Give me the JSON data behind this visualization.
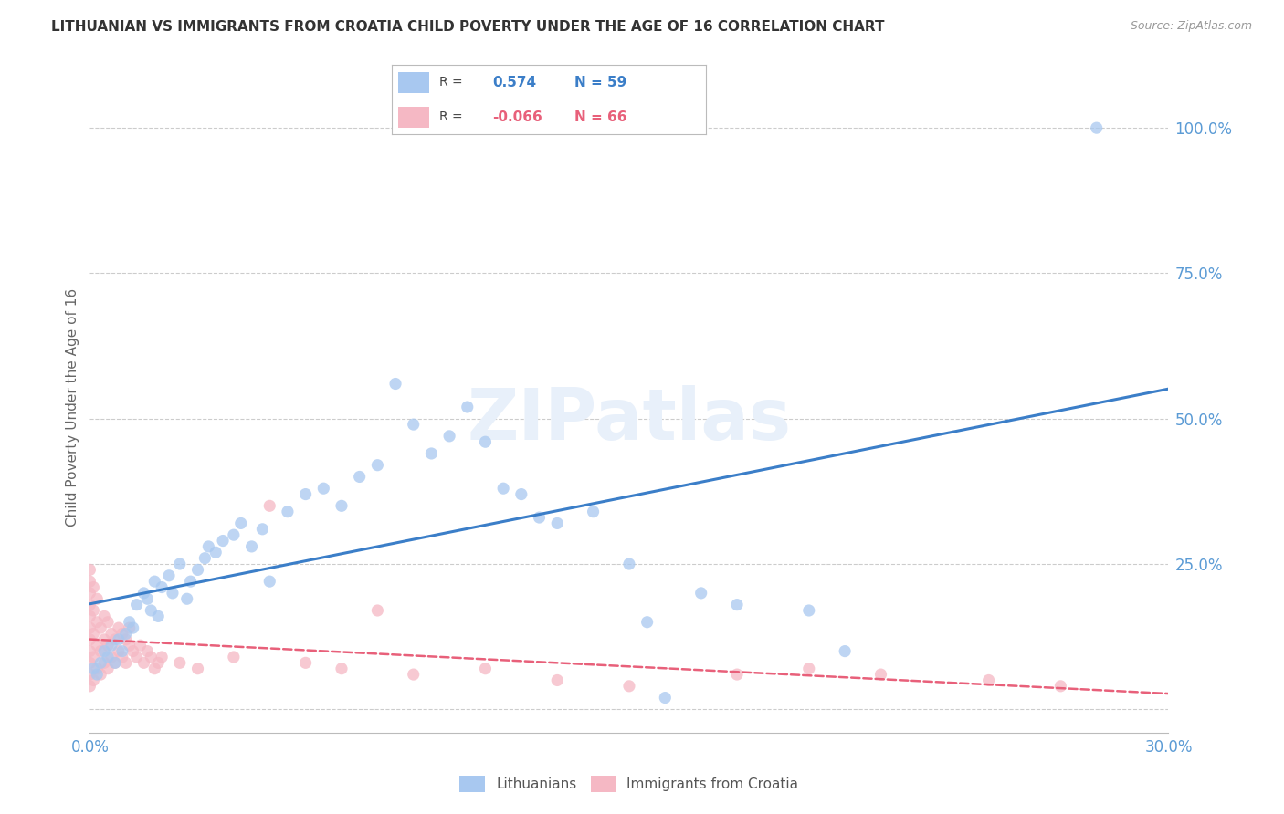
{
  "title": "LITHUANIAN VS IMMIGRANTS FROM CROATIA CHILD POVERTY UNDER THE AGE OF 16 CORRELATION CHART",
  "source": "Source: ZipAtlas.com",
  "ylabel": "Child Poverty Under the Age of 16",
  "xlim": [
    0.0,
    0.3
  ],
  "ylim": [
    -0.04,
    1.08
  ],
  "xticks": [
    0.0,
    0.05,
    0.1,
    0.15,
    0.2,
    0.25,
    0.3
  ],
  "ytick_right": [
    0.0,
    0.25,
    0.5,
    0.75,
    1.0
  ],
  "ytick_right_labels": [
    "",
    "25.0%",
    "50.0%",
    "75.0%",
    "100.0%"
  ],
  "blue_color": "#A8C8F0",
  "blue_line_color": "#3B7EC8",
  "pink_color": "#F5B8C4",
  "pink_line_color": "#E8607A",
  "R_blue": 0.574,
  "N_blue": 59,
  "R_pink": -0.066,
  "N_pink": 66,
  "legend_label_blue": "Lithuanians",
  "legend_label_pink": "Immigrants from Croatia",
  "title_color": "#333333",
  "axis_label_color": "#666666",
  "right_tick_color": "#5B9BD5",
  "grid_color": "#CCCCCC",
  "blue_scatter_x": [
    0.001,
    0.002,
    0.003,
    0.004,
    0.005,
    0.006,
    0.007,
    0.008,
    0.009,
    0.01,
    0.011,
    0.012,
    0.013,
    0.015,
    0.016,
    0.017,
    0.018,
    0.019,
    0.02,
    0.022,
    0.023,
    0.025,
    0.027,
    0.028,
    0.03,
    0.032,
    0.033,
    0.035,
    0.037,
    0.04,
    0.042,
    0.045,
    0.048,
    0.05,
    0.055,
    0.06,
    0.065,
    0.07,
    0.075,
    0.08,
    0.085,
    0.09,
    0.095,
    0.1,
    0.105,
    0.11,
    0.115,
    0.12,
    0.125,
    0.13,
    0.14,
    0.15,
    0.155,
    0.16,
    0.17,
    0.18,
    0.2,
    0.21,
    0.28
  ],
  "blue_scatter_y": [
    0.07,
    0.06,
    0.08,
    0.1,
    0.09,
    0.11,
    0.08,
    0.12,
    0.1,
    0.13,
    0.15,
    0.14,
    0.18,
    0.2,
    0.19,
    0.17,
    0.22,
    0.16,
    0.21,
    0.23,
    0.2,
    0.25,
    0.19,
    0.22,
    0.24,
    0.26,
    0.28,
    0.27,
    0.29,
    0.3,
    0.32,
    0.28,
    0.31,
    0.22,
    0.34,
    0.37,
    0.38,
    0.35,
    0.4,
    0.42,
    0.56,
    0.49,
    0.44,
    0.47,
    0.52,
    0.46,
    0.38,
    0.37,
    0.33,
    0.32,
    0.34,
    0.25,
    0.15,
    0.02,
    0.2,
    0.18,
    0.17,
    0.1,
    1.0
  ],
  "pink_scatter_x": [
    0.0,
    0.0,
    0.0,
    0.0,
    0.0,
    0.0,
    0.0,
    0.0,
    0.0,
    0.0,
    0.0,
    0.001,
    0.001,
    0.001,
    0.001,
    0.001,
    0.002,
    0.002,
    0.002,
    0.002,
    0.003,
    0.003,
    0.003,
    0.004,
    0.004,
    0.004,
    0.005,
    0.005,
    0.005,
    0.006,
    0.006,
    0.007,
    0.007,
    0.008,
    0.008,
    0.009,
    0.009,
    0.01,
    0.01,
    0.011,
    0.011,
    0.012,
    0.013,
    0.014,
    0.015,
    0.016,
    0.017,
    0.018,
    0.019,
    0.02,
    0.025,
    0.03,
    0.04,
    0.05,
    0.06,
    0.07,
    0.08,
    0.09,
    0.11,
    0.13,
    0.15,
    0.18,
    0.2,
    0.22,
    0.25,
    0.27
  ],
  "pink_scatter_y": [
    0.04,
    0.06,
    0.08,
    0.1,
    0.12,
    0.14,
    0.16,
    0.18,
    0.2,
    0.22,
    0.24,
    0.05,
    0.09,
    0.13,
    0.17,
    0.21,
    0.07,
    0.11,
    0.15,
    0.19,
    0.06,
    0.1,
    0.14,
    0.08,
    0.12,
    0.16,
    0.07,
    0.11,
    0.15,
    0.09,
    0.13,
    0.08,
    0.12,
    0.1,
    0.14,
    0.09,
    0.13,
    0.08,
    0.12,
    0.11,
    0.14,
    0.1,
    0.09,
    0.11,
    0.08,
    0.1,
    0.09,
    0.07,
    0.08,
    0.09,
    0.08,
    0.07,
    0.09,
    0.35,
    0.08,
    0.07,
    0.17,
    0.06,
    0.07,
    0.05,
    0.04,
    0.06,
    0.07,
    0.06,
    0.05,
    0.04
  ]
}
